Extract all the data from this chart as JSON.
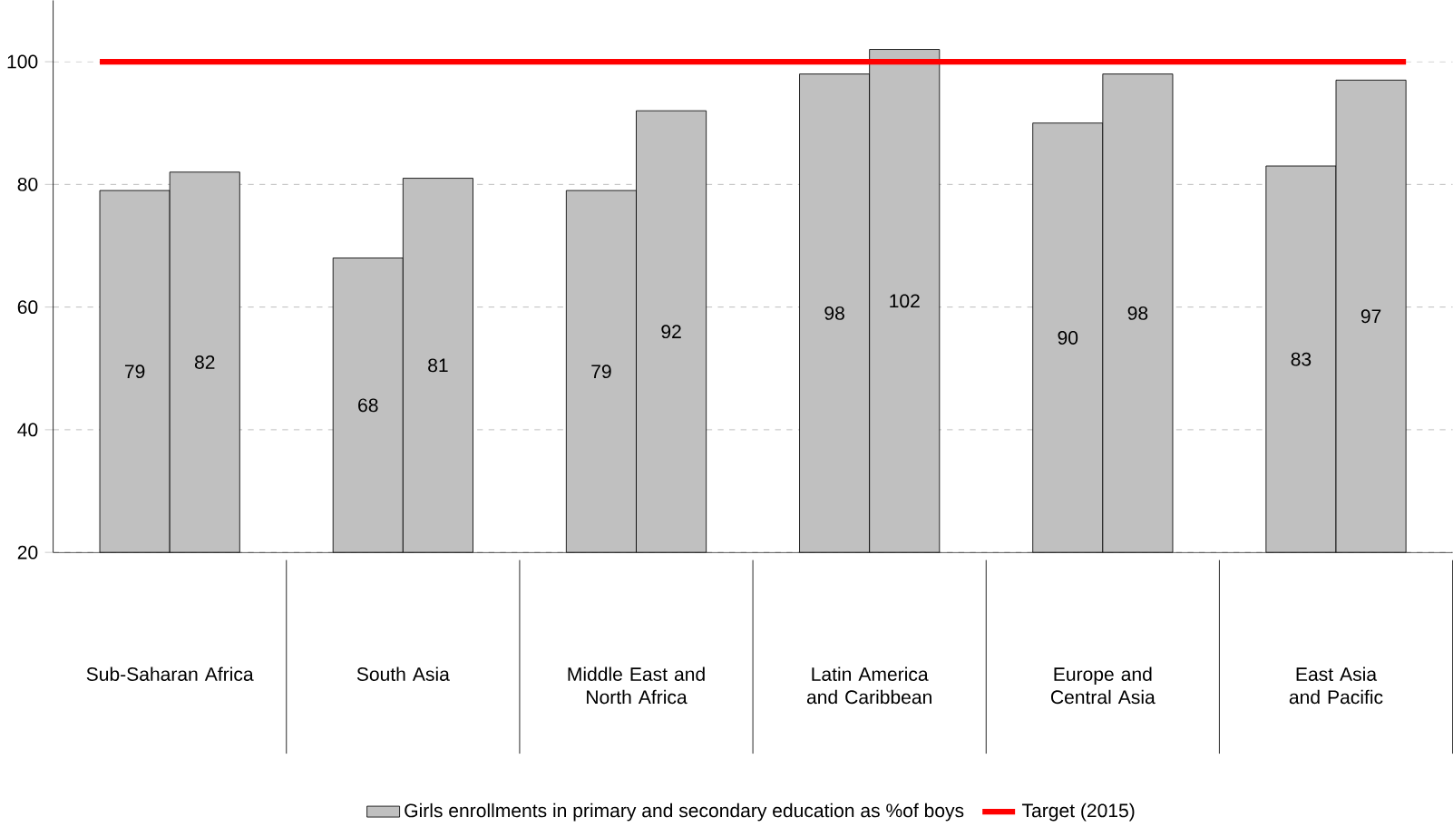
{
  "chart_data": {
    "type": "bar",
    "categories": [
      "Sub-Saharan Africa",
      "South Asia",
      "Middle East and North Africa",
      "Latin America and Caribbean",
      "Europe and Central Asia",
      "East Asia and Pacific"
    ],
    "series": [
      {
        "name": "Girls enrollments in primary and secondary education as %of boys",
        "color": "#c0c0c0",
        "values": [
          79,
          68,
          79,
          98,
          90,
          83
        ]
      },
      {
        "color": "#c0c0c0",
        "values": [
          82,
          81,
          92,
          102,
          98,
          97
        ]
      }
    ],
    "ylim": [
      20,
      110
    ],
    "yticks": [
      20,
      40,
      60,
      80,
      100
    ],
    "grid": "y",
    "data_labels": true,
    "legend": "bottom",
    "ref_lines": [
      {
        "axis": "y",
        "value": 100,
        "label": "Target (2015)",
        "color": "#ff0000"
      }
    ]
  }
}
